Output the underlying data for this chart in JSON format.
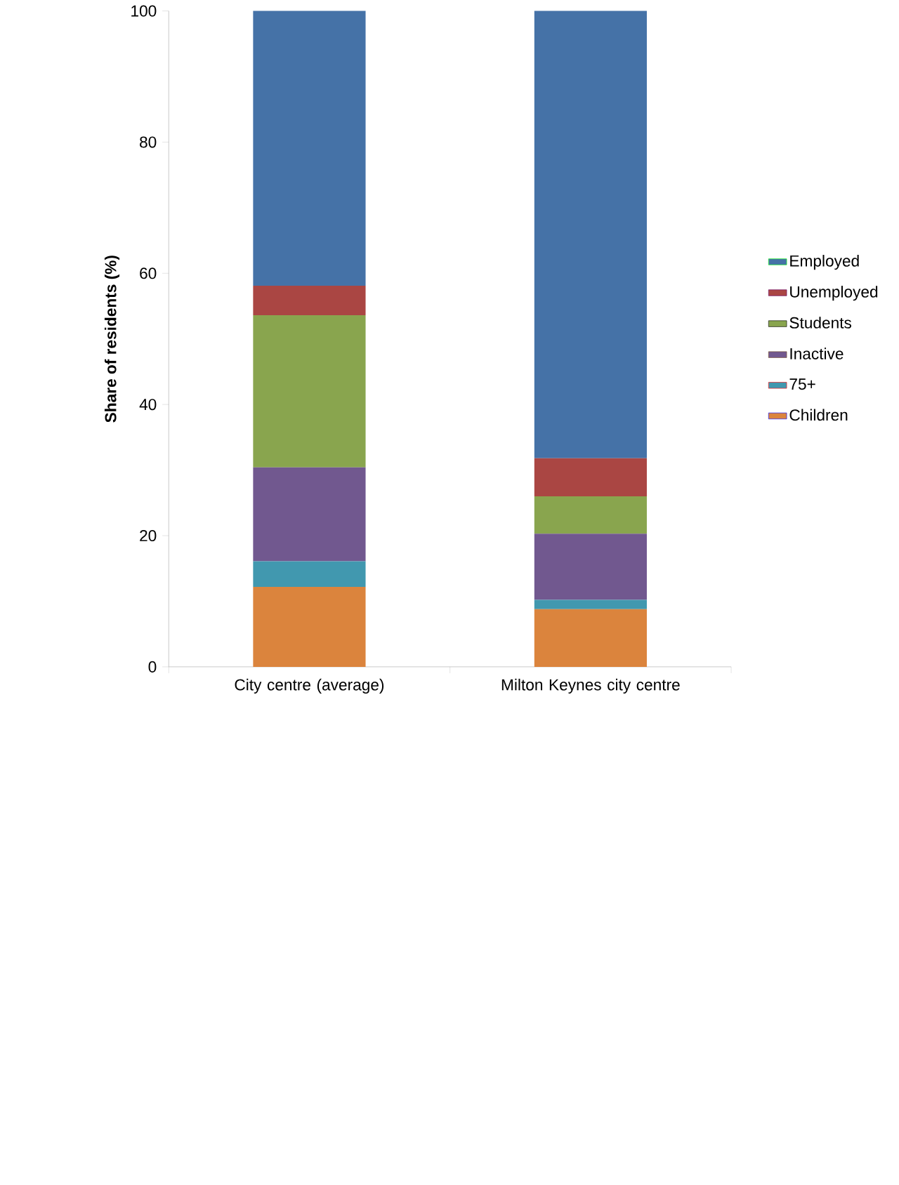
{
  "chart_data": {
    "type": "bar",
    "stacked": true,
    "ylabel": "**Share of residents (%)**",
    "categories": [
      "City centre (average)",
      "Milton Keynes city centre"
    ],
    "series": [
      {
        "name": "Children",
        "color": "#db843d",
        "values": [
          12.2,
          8.8
        ]
      },
      {
        "name": "75+",
        "color": "#4198af",
        "values": [
          3.9,
          1.4
        ]
      },
      {
        "name": "Inactive",
        "color": "#71588f",
        "values": [
          14.3,
          10.1
        ]
      },
      {
        "name": "Students",
        "color": "#89a54e",
        "values": [
          23.2,
          5.7
        ]
      },
      {
        "name": "Unemployed",
        "color": "#aa4643",
        "values": [
          4.5,
          5.8
        ]
      },
      {
        "name": "Employed",
        "color": "#4572a7",
        "values": [
          41.9,
          68.2
        ]
      }
    ],
    "ylim": [
      0,
      100
    ],
    "yticks": [
      0,
      20,
      40,
      60,
      80,
      100
    ],
    "legend": "right"
  }
}
